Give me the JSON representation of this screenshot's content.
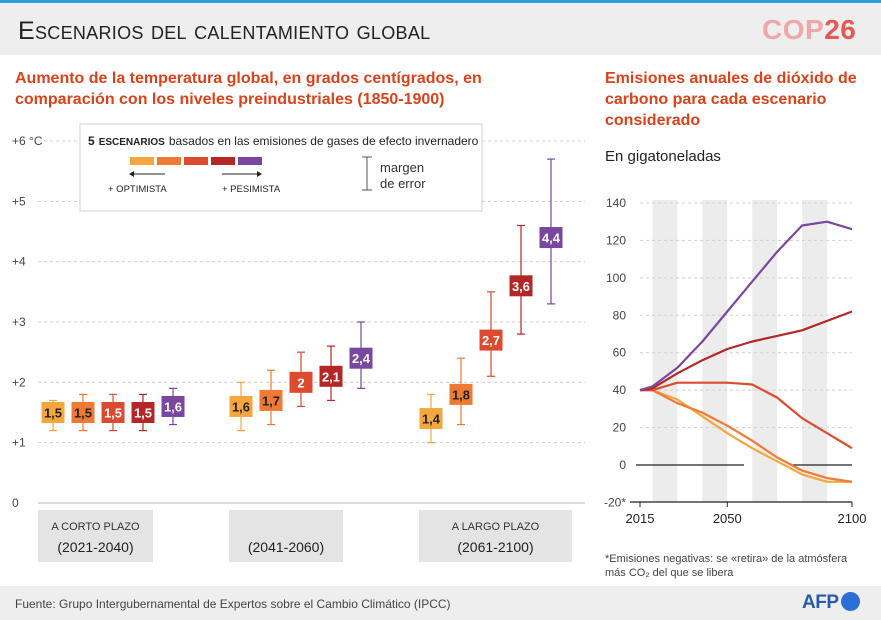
{
  "title": "Escenarios del calentamiento global",
  "logo": {
    "text_a": "COP",
    "text_b": "26"
  },
  "left_chart": {
    "heading": "Aumento de la temperatura global, en grados centígrados, en comparación con los niveles preindustriales (1850-1900)",
    "legend": {
      "count": "5",
      "escenarios": "escenarios",
      "description": "basados en las emisiones de gases de efecto invernadero",
      "optimista": "+ optimista",
      "pesimista": "+ pesimista",
      "error_label_1": "margen",
      "error_label_2": "de error"
    },
    "periods": [
      {
        "label": "A CORTO PLAZO",
        "years": "(2021-2040)"
      },
      {
        "label": "",
        "years": "(2041-2060)"
      },
      {
        "label": "A LARGO PLAZO",
        "years": "(2061-2100)"
      }
    ]
  },
  "right_chart": {
    "heading": "Emisiones anuales de dióxido de carbono para cada escenario considerado",
    "unit": "En gigatoneladas",
    "footnote_1": "*Emisiones negativas: se «retira» de la atmósfera",
    "footnote_2": "más CO₂ del que se libera"
  },
  "colors": {
    "s1": "#f5a63d",
    "s2": "#ee7a34",
    "s3": "#dc4a30",
    "s4": "#b52626",
    "s5": "#7a47a0"
  },
  "chart_data": [
    {
      "type": "bar",
      "title": "Aumento de la temperatura global, en grados centígrados, en comparación con los niveles preindustriales (1850-1900)",
      "ylabel": "°C",
      "ylim": [
        0,
        6
      ],
      "y_ticks": [
        "0",
        "+1",
        "+2",
        "+3",
        "+4",
        "+5",
        "+6 °C"
      ],
      "categories": [
        "A corto plazo (2021-2040)",
        "(2041-2060)",
        "A largo plazo (2061-2100)"
      ],
      "series": [
        {
          "name": "Escenario 1 (+ optimista)",
          "values": [
            1.5,
            1.6,
            1.4
          ],
          "labels": [
            "1,5",
            "1,6",
            "1,4"
          ],
          "low": [
            1.2,
            1.2,
            1.0
          ],
          "high": [
            1.7,
            2.0,
            1.8
          ]
        },
        {
          "name": "Escenario 2",
          "values": [
            1.5,
            1.7,
            1.8
          ],
          "labels": [
            "1,5",
            "1,7",
            "1,8"
          ],
          "low": [
            1.2,
            1.3,
            1.3
          ],
          "high": [
            1.8,
            2.2,
            2.4
          ]
        },
        {
          "name": "Escenario 3",
          "values": [
            1.5,
            2.0,
            2.7
          ],
          "labels": [
            "1,5",
            "2",
            "2,7"
          ],
          "low": [
            1.2,
            1.6,
            2.1
          ],
          "high": [
            1.8,
            2.5,
            3.5
          ]
        },
        {
          "name": "Escenario 4",
          "values": [
            1.5,
            2.1,
            3.6
          ],
          "labels": [
            "1,5",
            "2,1",
            "3,6"
          ],
          "low": [
            1.2,
            1.7,
            2.8
          ],
          "high": [
            1.8,
            2.6,
            4.6
          ]
        },
        {
          "name": "Escenario 5 (+ pesimista)",
          "values": [
            1.6,
            2.4,
            4.4
          ],
          "labels": [
            "1,6",
            "2,4",
            "4,4"
          ],
          "low": [
            1.3,
            1.9,
            3.3
          ],
          "high": [
            1.9,
            3.0,
            5.7
          ]
        }
      ]
    },
    {
      "type": "line",
      "title": "Emisiones anuales de dióxido de carbono para cada escenario considerado",
      "ylabel": "En gigatoneladas",
      "ylim": [
        -20,
        140
      ],
      "y_ticks": [
        "140",
        "120",
        "100",
        "80",
        "60",
        "40",
        "20",
        "0",
        "-20*"
      ],
      "x_ticks": [
        "2015",
        "2050",
        "2100"
      ],
      "x": [
        2015,
        2020,
        2030,
        2040,
        2050,
        2060,
        2070,
        2080,
        2090,
        2100
      ],
      "series": [
        {
          "name": "Escenario 1",
          "values": [
            40,
            40,
            35,
            26,
            17,
            9,
            2,
            -5,
            -9,
            -9
          ]
        },
        {
          "name": "Escenario 2",
          "values": [
            40,
            40,
            33,
            28,
            21,
            13,
            4,
            -3,
            -7,
            -9
          ]
        },
        {
          "name": "Escenario 3",
          "values": [
            40,
            40,
            44,
            44,
            44,
            43,
            36,
            25,
            17,
            9
          ]
        },
        {
          "name": "Escenario 4",
          "values": [
            40,
            41,
            49,
            56,
            62,
            66,
            69,
            72,
            77,
            82
          ]
        },
        {
          "name": "Escenario 5",
          "values": [
            40,
            42,
            52,
            66,
            82,
            98,
            114,
            128,
            130,
            126
          ]
        }
      ]
    }
  ],
  "footer": {
    "source": "Fuente: Grupo Intergubernamental de Expertos sobre el Cambio Climático (IPCC)",
    "afp": "AFP"
  }
}
